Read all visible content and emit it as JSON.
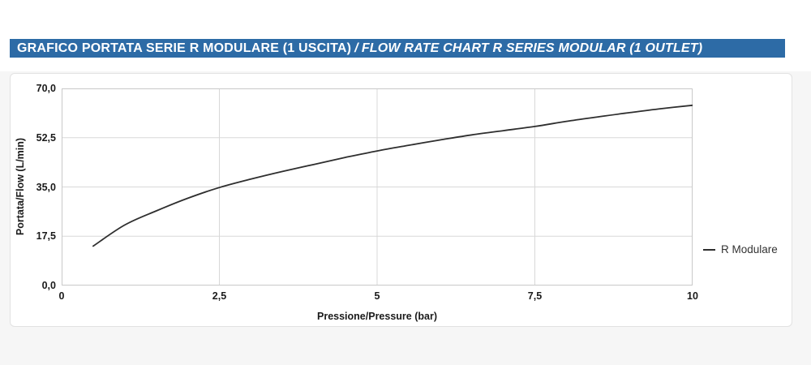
{
  "title_bar": {
    "text_it": "GRAFICO PORTATA SERIE R MODULARE (1 USCITA)",
    "separator": "/",
    "text_en": "FLOW RATE CHART R SERIES MODULAR (1 OUTLET)",
    "bg_color": "#2d6ba6",
    "text_color": "#ffffff"
  },
  "chart_data": {
    "type": "line",
    "title": "",
    "xlabel": "Pressione/Pressure (bar)",
    "ylabel": "Portata/Flow (L/min)",
    "xlim": [
      0,
      10
    ],
    "ylim": [
      0,
      70
    ],
    "x_ticks": {
      "values": [
        0,
        2.5,
        5,
        7.5,
        10
      ],
      "labels": [
        "0",
        "2,5",
        "5",
        "7,5",
        "10"
      ]
    },
    "y_ticks": {
      "values": [
        0,
        17.5,
        35,
        52.5,
        70
      ],
      "labels": [
        "0,0",
        "17,5",
        "35,0",
        "52,5",
        "70,0"
      ]
    },
    "grid": true,
    "legend": {
      "position": "right",
      "entries": [
        "R Modulare"
      ]
    },
    "series": [
      {
        "name": "R Modulare",
        "color": "#2e2e2e",
        "x": [
          0.5,
          1,
          1.5,
          2,
          2.5,
          3,
          3.5,
          4,
          4.5,
          5,
          5.5,
          6,
          6.5,
          7,
          7.5,
          8,
          8.5,
          9,
          9.5,
          10
        ],
        "y": [
          14.0,
          21.5,
          26.5,
          31.0,
          34.8,
          37.8,
          40.5,
          43.0,
          45.5,
          47.8,
          49.8,
          51.7,
          53.5,
          55.0,
          56.5,
          58.3,
          59.9,
          61.4,
          62.8,
          64.0
        ]
      }
    ],
    "colors": {
      "grid": "#d8d8d8",
      "axis_border": "#c9c9c9",
      "tick_text": "#1a1a1a"
    }
  }
}
